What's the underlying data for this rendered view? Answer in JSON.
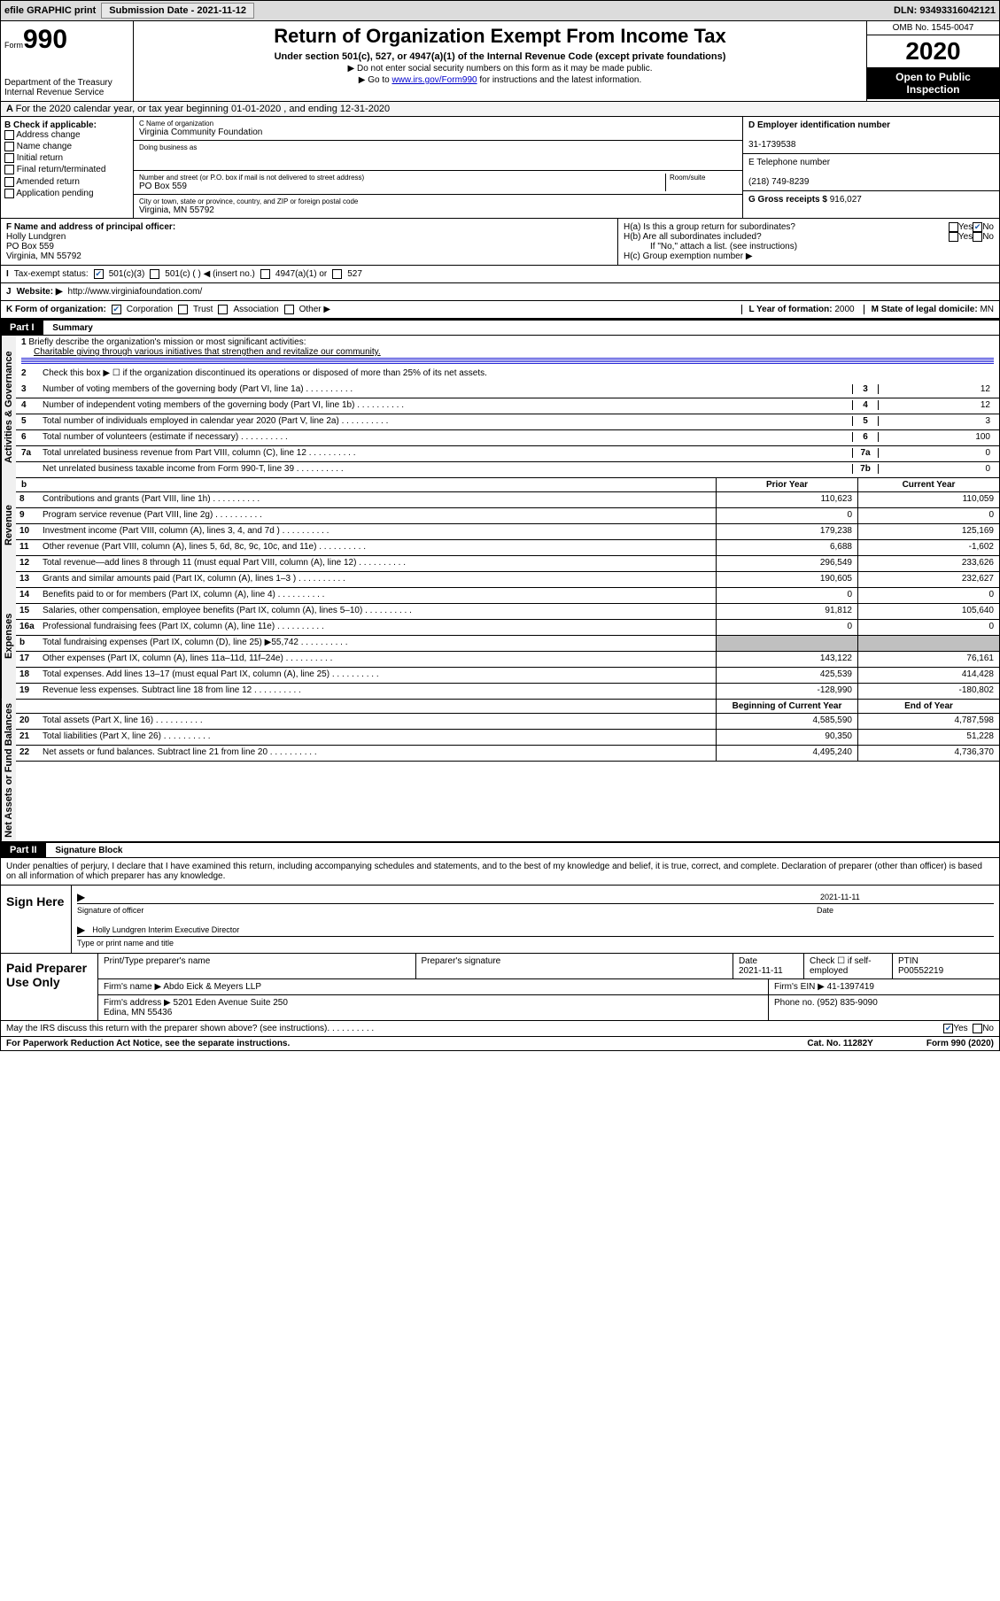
{
  "topbar": {
    "efile": "efile GRAPHIC print",
    "submission_label": "Submission Date - ",
    "submission_date": "2021-11-12",
    "dln": "DLN: 93493316042121"
  },
  "header": {
    "form_prefix": "Form",
    "form_number": "990",
    "dept": "Department of the Treasury\nInternal Revenue Service",
    "title": "Return of Organization Exempt From Income Tax",
    "subtitle": "Under section 501(c), 527, or 4947(a)(1) of the Internal Revenue Code (except private foundations)",
    "inst1": "▶ Do not enter social security numbers on this form as it may be made public.",
    "inst2_pre": "▶ Go to ",
    "inst2_link": "www.irs.gov/Form990",
    "inst2_post": " for instructions and the latest information.",
    "omb": "OMB No. 1545-0047",
    "year": "2020",
    "inspection": "Open to Public Inspection"
  },
  "period": {
    "text": "For the 2020 calendar year, or tax year beginning 01-01-2020    , and ending 12-31-2020"
  },
  "section_b": {
    "label": "B Check if applicable:",
    "items": [
      "Address change",
      "Name change",
      "Initial return",
      "Final return/terminated",
      "Amended return",
      "Application pending"
    ]
  },
  "section_c": {
    "name_label": "C Name of organization",
    "name": "Virginia Community Foundation",
    "dba_label": "Doing business as",
    "dba": "",
    "street_label": "Number and street (or P.O. box if mail is not delivered to street address)",
    "room_label": "Room/suite",
    "street": "PO Box 559",
    "city_label": "City or town, state or province, country, and ZIP or foreign postal code",
    "city": "Virginia, MN  55792"
  },
  "section_d": {
    "ein_label": "D Employer identification number",
    "ein": "31-1739538",
    "phone_label": "E Telephone number",
    "phone": "(218) 749-8239",
    "gross_label": "G Gross receipts $ ",
    "gross": "916,027"
  },
  "officer": {
    "label": "F  Name and address of principal officer:",
    "name": "Holly Lundgren",
    "addr1": "PO Box 559",
    "addr2": "Virginia, MN  55792"
  },
  "section_h": {
    "ha": "H(a)  Is this a group return for subordinates?",
    "hb": "H(b)  Are all subordinates included?",
    "hb_note": "If \"No,\" attach a list. (see instructions)",
    "hc": "H(c)  Group exemption number ▶"
  },
  "tax_status": {
    "label": "Tax-exempt status:",
    "opts": [
      "501(c)(3)",
      "501(c) (  ) ◀ (insert no.)",
      "4947(a)(1) or",
      "527"
    ]
  },
  "website": {
    "label": "Website: ▶",
    "url": "http://www.virginiafoundation.com/"
  },
  "org_form": {
    "label": "K Form of organization:",
    "opts": [
      "Corporation",
      "Trust",
      "Association",
      "Other ▶"
    ],
    "year_label": "L Year of formation: ",
    "year": "2000",
    "state_label": "M State of legal domicile: ",
    "state": "MN"
  },
  "part1": {
    "header": "Part I",
    "title": "Summary",
    "l1_label": "Briefly describe the organization's mission or most significant activities:",
    "l1_text": "Charitable giving through various initiatives that strengthen and revitalize our community.",
    "l2": "Check this box ▶ ☐  if the organization discontinued its operations or disposed of more than 25% of its net assets.",
    "lines_simple": [
      {
        "n": "3",
        "t": "Number of voting members of the governing body (Part VI, line 1a)",
        "box": "3",
        "v": "12"
      },
      {
        "n": "4",
        "t": "Number of independent voting members of the governing body (Part VI, line 1b)",
        "box": "4",
        "v": "12"
      },
      {
        "n": "5",
        "t": "Total number of individuals employed in calendar year 2020 (Part V, line 2a)",
        "box": "5",
        "v": "3"
      },
      {
        "n": "6",
        "t": "Total number of volunteers (estimate if necessary)",
        "box": "6",
        "v": "100"
      },
      {
        "n": "7a",
        "t": "Total unrelated business revenue from Part VIII, column (C), line 12",
        "box": "7a",
        "v": "0"
      },
      {
        "n": "",
        "t": "Net unrelated business taxable income from Form 990-T, line 39",
        "box": "7b",
        "v": "0"
      }
    ],
    "col_headers": {
      "b": "b",
      "prior": "Prior Year",
      "current": "Current Year"
    },
    "revenue": [
      {
        "n": "8",
        "t": "Contributions and grants (Part VIII, line 1h)",
        "p": "110,623",
        "c": "110,059"
      },
      {
        "n": "9",
        "t": "Program service revenue (Part VIII, line 2g)",
        "p": "0",
        "c": "0"
      },
      {
        "n": "10",
        "t": "Investment income (Part VIII, column (A), lines 3, 4, and 7d )",
        "p": "179,238",
        "c": "125,169"
      },
      {
        "n": "11",
        "t": "Other revenue (Part VIII, column (A), lines 5, 6d, 8c, 9c, 10c, and 11e)",
        "p": "6,688",
        "c": "-1,602"
      },
      {
        "n": "12",
        "t": "Total revenue—add lines 8 through 11 (must equal Part VIII, column (A), line 12)",
        "p": "296,549",
        "c": "233,626"
      }
    ],
    "expenses": [
      {
        "n": "13",
        "t": "Grants and similar amounts paid (Part IX, column (A), lines 1–3 )",
        "p": "190,605",
        "c": "232,627"
      },
      {
        "n": "14",
        "t": "Benefits paid to or for members (Part IX, column (A), line 4)",
        "p": "0",
        "c": "0"
      },
      {
        "n": "15",
        "t": "Salaries, other compensation, employee benefits (Part IX, column (A), lines 5–10)",
        "p": "91,812",
        "c": "105,640"
      },
      {
        "n": "16a",
        "t": "Professional fundraising fees (Part IX, column (A), line 11e)",
        "p": "0",
        "c": "0"
      },
      {
        "n": "b",
        "t": "Total fundraising expenses (Part IX, column (D), line 25) ▶55,742",
        "p": "",
        "c": "",
        "shaded": true
      },
      {
        "n": "17",
        "t": "Other expenses (Part IX, column (A), lines 11a–11d, 11f–24e)",
        "p": "143,122",
        "c": "76,161"
      },
      {
        "n": "18",
        "t": "Total expenses. Add lines 13–17 (must equal Part IX, column (A), line 25)",
        "p": "425,539",
        "c": "414,428"
      },
      {
        "n": "19",
        "t": "Revenue less expenses. Subtract line 18 from line 12",
        "p": "-128,990",
        "c": "-180,802"
      }
    ],
    "net_headers": {
      "prior": "Beginning of Current Year",
      "current": "End of Year"
    },
    "net": [
      {
        "n": "20",
        "t": "Total assets (Part X, line 16)",
        "p": "4,585,590",
        "c": "4,787,598"
      },
      {
        "n": "21",
        "t": "Total liabilities (Part X, line 26)",
        "p": "90,350",
        "c": "51,228"
      },
      {
        "n": "22",
        "t": "Net assets or fund balances. Subtract line 21 from line 20",
        "p": "4,495,240",
        "c": "4,736,370"
      }
    ],
    "vert_labels": {
      "gov": "Activities & Governance",
      "rev": "Revenue",
      "exp": "Expenses",
      "net": "Net Assets or Fund Balances"
    }
  },
  "part2": {
    "header": "Part II",
    "title": "Signature Block",
    "decl": "Under penalties of perjury, I declare that I have examined this return, including accompanying schedules and statements, and to the best of my knowledge and belief, it is true, correct, and complete. Declaration of preparer (other than officer) is based on all information of which preparer has any knowledge.",
    "sign_here": "Sign Here",
    "sig_off": "Signature of officer",
    "sig_date": "2021-11-11",
    "date_lbl": "Date",
    "typed_name": "Holly Lundgren Interim Executive Director",
    "typed_lbl": "Type or print name and title"
  },
  "paid_prep": {
    "label": "Paid Preparer Use Only",
    "h": [
      "Print/Type preparer's name",
      "Preparer's signature",
      "Date\n2021-11-11",
      "Check ☐ if self-employed",
      "PTIN\nP00552219"
    ],
    "firm_name_lbl": "Firm's name      ▶ ",
    "firm_name": "Abdo Eick & Meyers LLP",
    "firm_ein_lbl": "Firm's EIN ▶ ",
    "firm_ein": "41-1397419",
    "firm_addr_lbl": "Firm's address ▶ ",
    "firm_addr": "5201 Eden Avenue Suite 250\nEdina, MN  55436",
    "phone_lbl": "Phone no. ",
    "phone": "(952) 835-9090"
  },
  "footer": {
    "discuss": "May the IRS discuss this return with the preparer shown above? (see instructions)",
    "yes": "Yes",
    "no": "No",
    "paperwork": "For Paperwork Reduction Act Notice, see the separate instructions.",
    "cat": "Cat. No. 11282Y",
    "form": "Form 990 (2020)"
  }
}
